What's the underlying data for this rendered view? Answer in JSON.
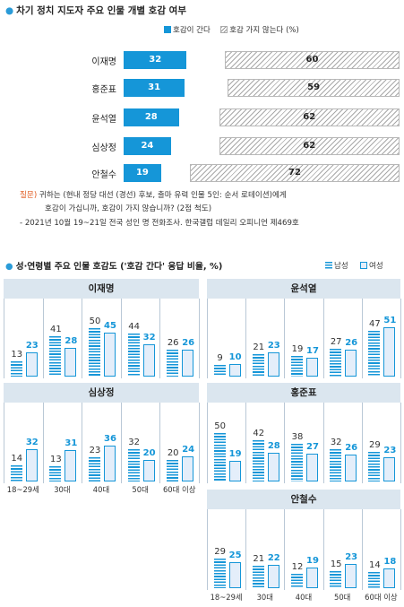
{
  "section1": {
    "title": "차기 정치 지도자 주요 인물 개별 호감 여부",
    "legend": {
      "favorable": "호감이 간다",
      "unfavorable": "호감 가지 않는다 (%)"
    }
  },
  "notes": {
    "question_label": "질문)",
    "question_line1": "귀하는 (현내 정당 대선 (경선) 후보, 출마 유력 인물 5인: 순서 로테이션)에게",
    "question_line2": "호감이 가십니까, 호감이 가지 않습니까? (2점 척도)",
    "source": "- 2021년 10월 19~21일 전국 성인 명 전화조사. 한국갤럽 데일리 오피니언 제469호"
  },
  "section2": {
    "title": "성·연령별 주요 인물 호감도 ('호감 간다' 응답 비율, %)",
    "legend": {
      "male": "남성",
      "female": "여성"
    }
  },
  "chart_data": [
    {
      "type": "bar",
      "orientation": "horizontal",
      "stacked": true,
      "categories": [
        "이재명",
        "홍준표",
        "윤석열",
        "심상정",
        "안철수"
      ],
      "series": [
        {
          "name": "호감이 간다",
          "values": [
            32,
            31,
            28,
            24,
            19
          ]
        },
        {
          "name": "호감 가지 않는다",
          "values": [
            60,
            59,
            62,
            62,
            72
          ]
        }
      ],
      "unit": "%",
      "colors": {
        "favorable": "#1596d8",
        "unfavorable": "hatch-gray"
      }
    },
    {
      "type": "bar",
      "title_unit": "%",
      "categories": [
        "18~29세",
        "30대",
        "40대",
        "50대",
        "60대 이상"
      ],
      "colors": {
        "male": "#1596d8",
        "female": "#e4eefa"
      },
      "panels": [
        {
          "title": "이재명",
          "male": [
            13,
            41,
            50,
            44,
            26
          ],
          "female": [
            23,
            28,
            45,
            32,
            26
          ]
        },
        {
          "title": "윤석열",
          "male": [
            9,
            21,
            19,
            27,
            47
          ],
          "female": [
            10,
            23,
            17,
            26,
            51
          ]
        },
        {
          "title": "심상정",
          "male": [
            14,
            13,
            23,
            32,
            20
          ],
          "female": [
            32,
            31,
            36,
            20,
            24
          ]
        },
        {
          "title": "홍준표",
          "male": [
            50,
            42,
            38,
            32,
            29
          ],
          "female": [
            19,
            28,
            27,
            26,
            23
          ]
        },
        {
          "title": "안철수",
          "male": [
            29,
            21,
            12,
            15,
            14
          ],
          "female": [
            25,
            22,
            19,
            23,
            18
          ]
        }
      ]
    }
  ]
}
